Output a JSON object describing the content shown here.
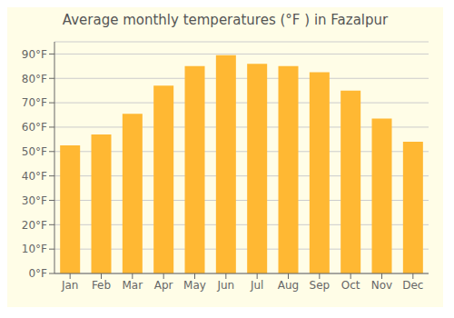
{
  "chart_data": {
    "type": "bar",
    "title": "Average monthly temperatures (°F ) in Fazalpur",
    "categories": [
      "Jan",
      "Feb",
      "Mar",
      "Apr",
      "May",
      "Jun",
      "Jul",
      "Aug",
      "Sep",
      "Oct",
      "Nov",
      "Dec"
    ],
    "values": [
      52.5,
      57,
      65.5,
      77,
      85,
      89.5,
      86,
      85,
      82.5,
      75,
      63.5,
      54
    ],
    "color": "#FFB833",
    "ylim": [
      0,
      95
    ],
    "yticks": [
      {
        "value": 0,
        "label": "0°F"
      },
      {
        "value": 10,
        "label": "10°F"
      },
      {
        "value": 20,
        "label": "20°F"
      },
      {
        "value": 30,
        "label": "30°F"
      },
      {
        "value": 40,
        "label": "40°F"
      },
      {
        "value": 50,
        "label": "50°F"
      },
      {
        "value": 60,
        "label": "60°F"
      },
      {
        "value": 70,
        "label": "70°F"
      },
      {
        "value": 80,
        "label": "80°F"
      },
      {
        "value": 90,
        "label": "90°F"
      }
    ],
    "grid": true
  }
}
